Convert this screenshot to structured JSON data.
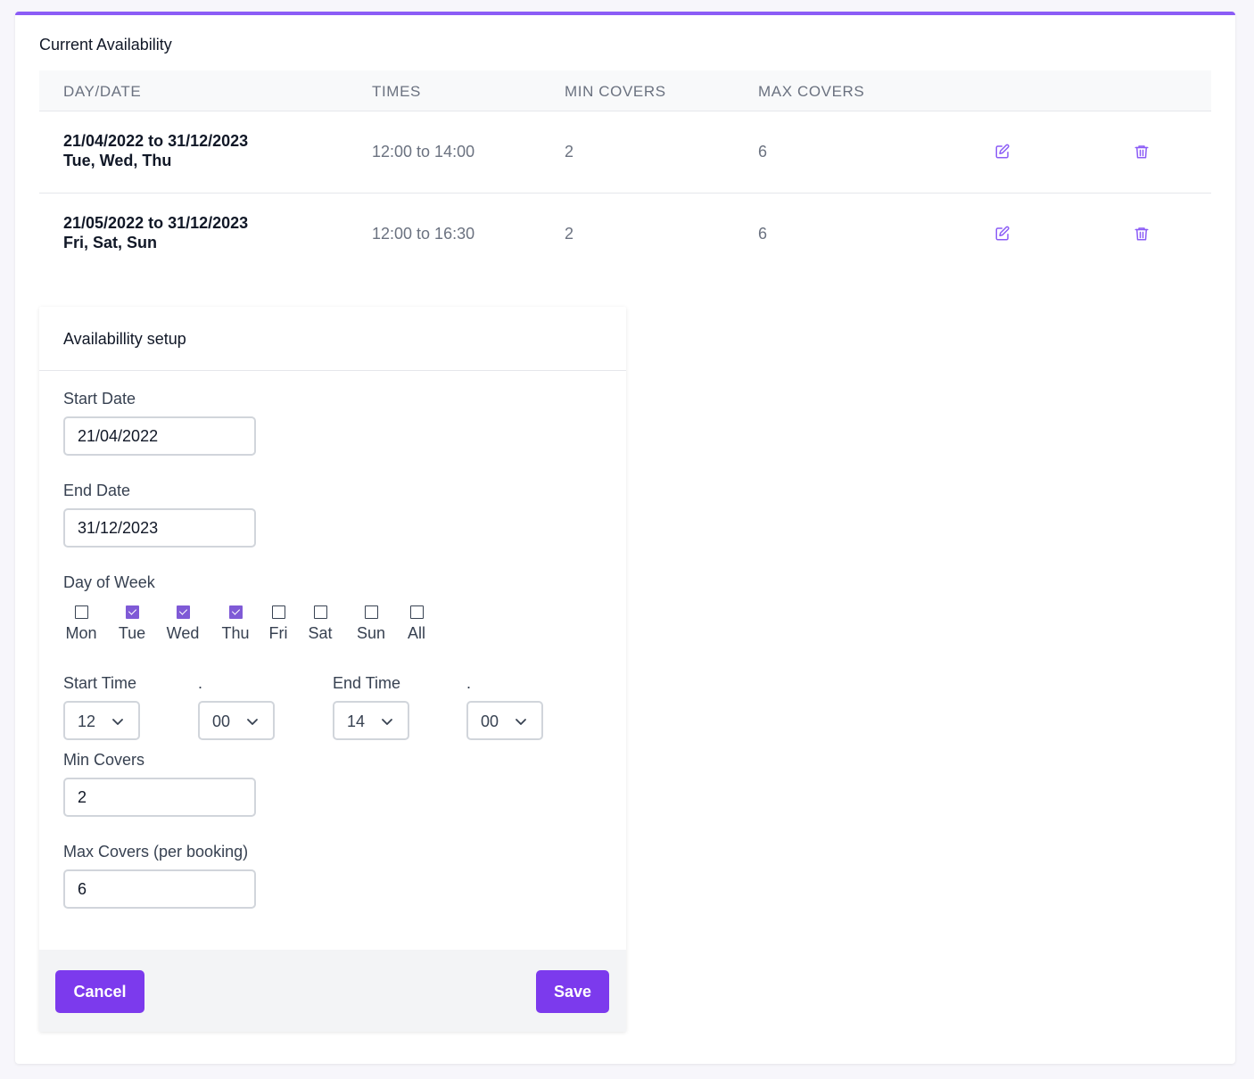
{
  "colors": {
    "accent": "#7c3aed",
    "accent_top_border": "#8b5cf6",
    "checkbox_checked": "#7f5ad6"
  },
  "current": {
    "title": "Current Availability",
    "columns": [
      "DAY/DATE",
      "TIMES",
      "MIN COVERS",
      "MAX COVERS"
    ],
    "rows": [
      {
        "date_range": "21/04/2022 to 31/12/2023",
        "days": "Tue, Wed, Thu",
        "times": "12:00 to 14:00",
        "min": "2",
        "max": "6",
        "edit_icon": "edit-icon",
        "delete_icon": "trash-icon"
      },
      {
        "date_range": "21/05/2022 to 31/12/2023",
        "days": "Fri, Sat, Sun",
        "times": "12:00 to 16:30",
        "min": "2",
        "max": "6",
        "edit_icon": "edit-icon",
        "delete_icon": "trash-icon"
      }
    ]
  },
  "setup": {
    "title": "Availabillity setup",
    "start_date": {
      "label": "Start Date",
      "value": "21/04/2022"
    },
    "end_date": {
      "label": "End Date",
      "value": "31/12/2023"
    },
    "day_of_week": {
      "label": "Day of Week",
      "days": [
        {
          "label": "Mon",
          "checked": false
        },
        {
          "label": "Tue",
          "checked": true
        },
        {
          "label": "Wed",
          "checked": true
        },
        {
          "label": "Thu",
          "checked": true
        },
        {
          "label": "Fri",
          "checked": false
        },
        {
          "label": "Sat",
          "checked": false
        },
        {
          "label": "Sun",
          "checked": false
        },
        {
          "label": "All",
          "checked": false
        }
      ]
    },
    "start_time": {
      "label": "Start Time",
      "hour": "12",
      "sep_label": ".",
      "minute": "00"
    },
    "end_time": {
      "label": "End Time",
      "hour": "14",
      "sep_label": ".",
      "minute": "00"
    },
    "min_covers": {
      "label": "Min Covers",
      "value": "2"
    },
    "max_covers": {
      "label": "Max Covers (per booking)",
      "value": "6"
    },
    "cancel_label": "Cancel",
    "save_label": "Save"
  }
}
